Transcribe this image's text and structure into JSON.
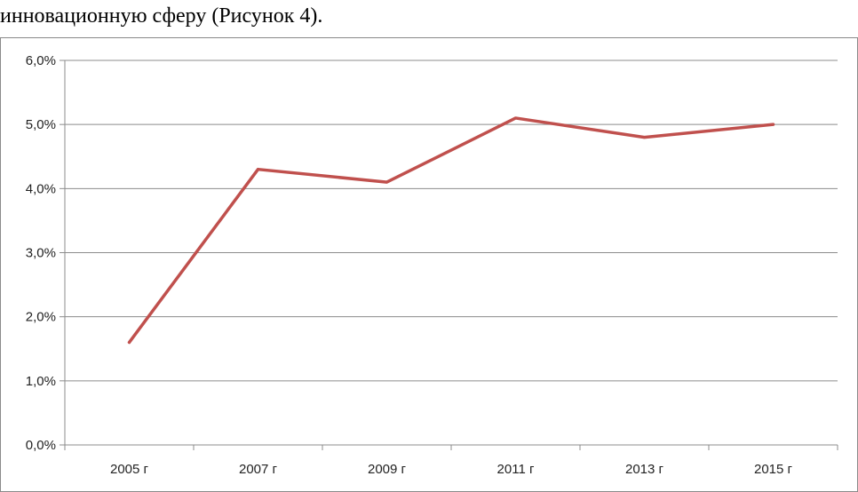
{
  "caption": "инновационную сферу (Рисунок 4).",
  "chart_data": {
    "type": "line",
    "categories": [
      "2005 г",
      "2007 г",
      "2009 г",
      "2011 г",
      "2013 г",
      "2015 г"
    ],
    "series": [
      {
        "values": [
          1.6,
          4.3,
          4.1,
          5.1,
          4.8,
          5.0
        ]
      }
    ],
    "y_ticks": [
      "0,0%",
      "1,0%",
      "2,0%",
      "3,0%",
      "4,0%",
      "5,0%",
      "6,0%"
    ],
    "ylim": [
      0,
      6
    ],
    "grid": true,
    "legend": "none",
    "line_color": "#C0504D",
    "grid_color": "#8C8C8C"
  }
}
